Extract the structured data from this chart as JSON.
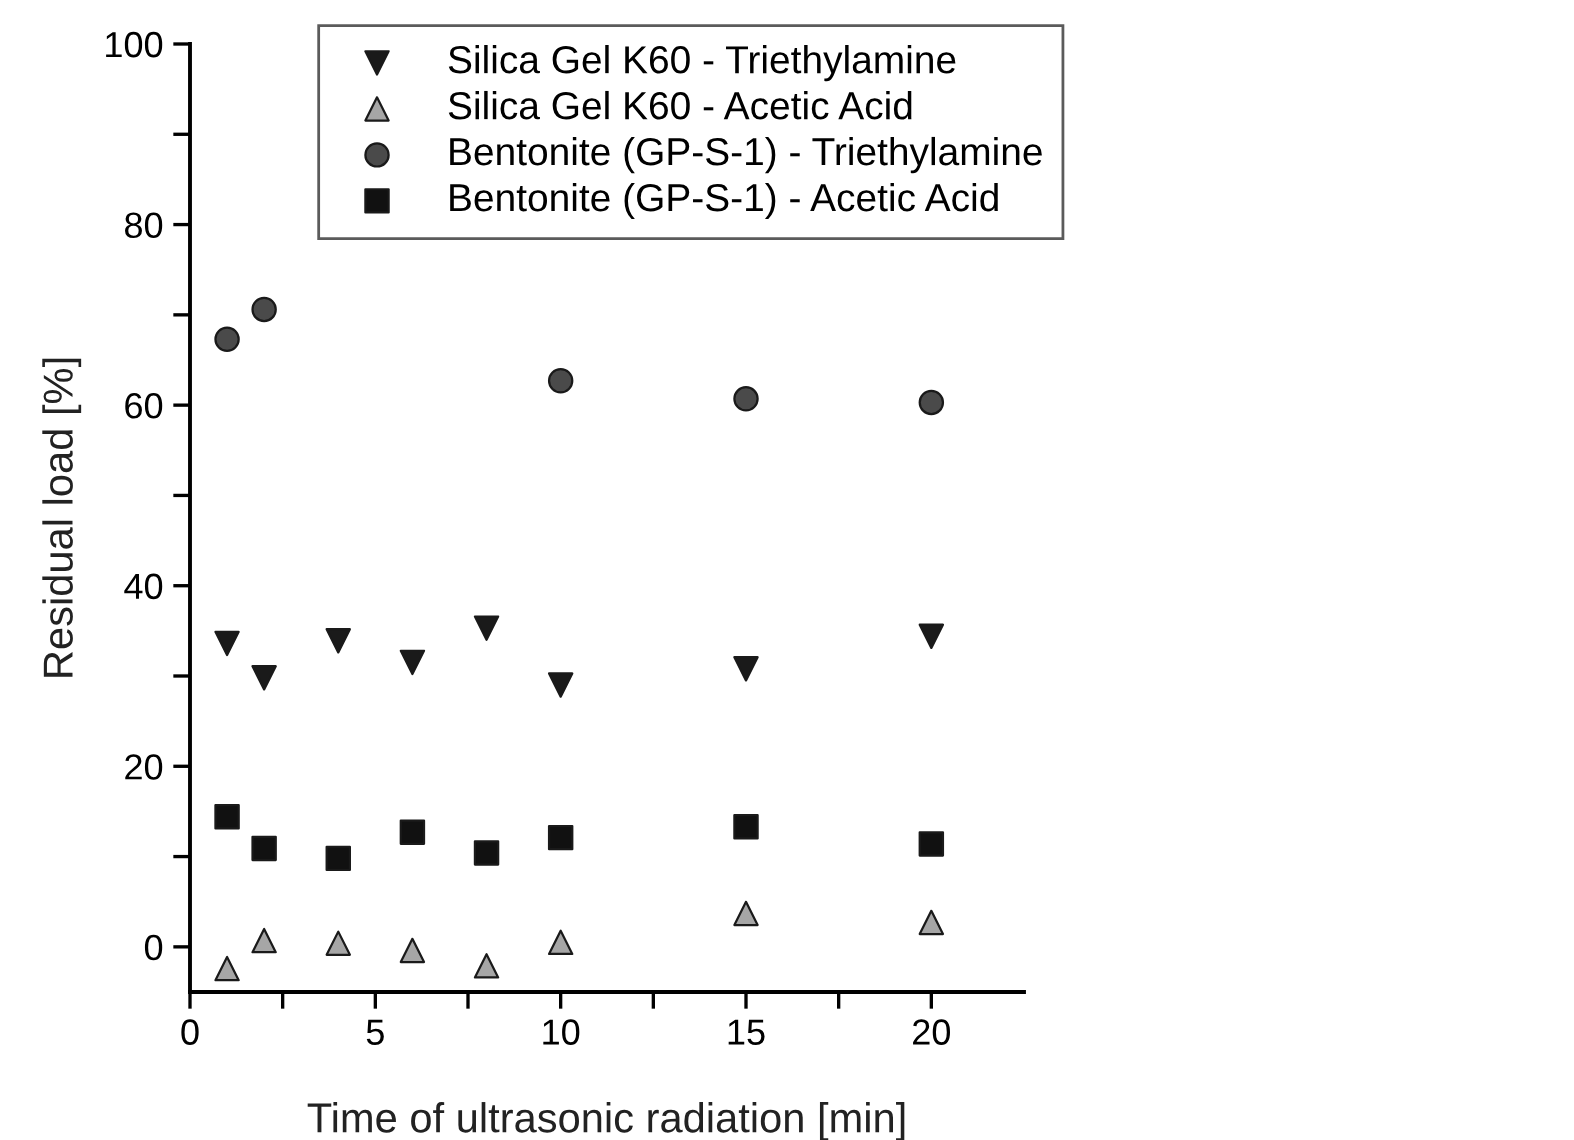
{
  "chart_data": {
    "type": "scatter",
    "xlabel": "Time of ultrasonic radiation [min]",
    "ylabel": "Residual load [%]",
    "x": [
      1,
      2,
      4,
      6,
      8,
      10,
      15,
      20
    ],
    "series": [
      {
        "name": "Silica Gel K60 - Triethylamine",
        "color": "#1a1a1a",
        "marker": "triangle_down",
        "values": [
          33.6,
          29.8,
          33.9,
          31.5,
          35.3,
          29.0,
          30.8,
          34.4
        ]
      },
      {
        "name": "Silica Gel K60 - Acetic Acid",
        "color": "#a6a6a6",
        "marker": "triangle",
        "values": [
          -2.4,
          0.7,
          0.4,
          -0.4,
          -2.1,
          0.5,
          3.7,
          2.7
        ]
      },
      {
        "name": "Bentonite (GP-S-1) - Triethylamine",
        "color": "#4a4a4a",
        "marker": "circle",
        "values": [
          67.3,
          70.6,
          null,
          null,
          null,
          62.7,
          60.7,
          60.3
        ]
      },
      {
        "name": "Bentonite (GP-S-1) - Acetic Acid",
        "color": "#111111",
        "marker": "square",
        "values": [
          14.4,
          10.9,
          9.8,
          12.7,
          10.4,
          12.1,
          13.3,
          11.4
        ]
      }
    ],
    "xlim": [
      0,
      22.5
    ],
    "ylim": [
      -5,
      100
    ],
    "xticks": [
      0,
      {
        "value": 2.5,
        "label": null
      },
      5,
      {
        "value": 7.5,
        "label": null
      },
      10,
      {
        "value": 12.5,
        "label": null
      },
      15,
      {
        "value": 17.5,
        "label": null
      },
      20
    ],
    "yticks": [
      0,
      {
        "value": 10,
        "label": null
      },
      20,
      {
        "value": 30,
        "label": null
      },
      40,
      {
        "value": 50,
        "label": null
      },
      60,
      {
        "value": 70,
        "label": null
      },
      80,
      {
        "value": 90,
        "label": null
      },
      100
    ],
    "legend": "top right",
    "grid": false
  }
}
